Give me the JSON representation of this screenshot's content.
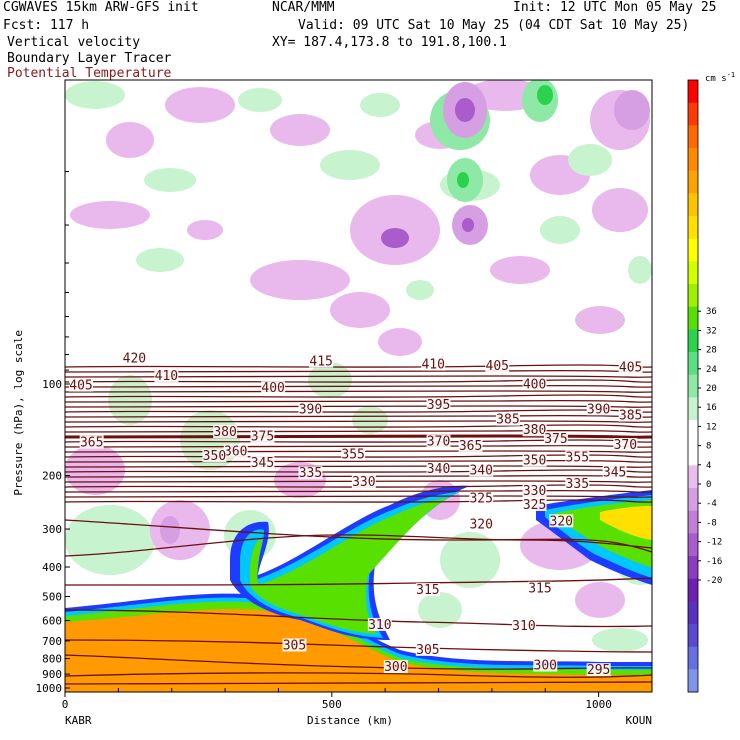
{
  "header": {
    "model": "CGWAVES 15km ARW-GFS init",
    "org": "NCAR/MMM",
    "init": "Init: 12 UTC Mon 05 May 25",
    "fcst": "Fcst:  117 h",
    "valid": "Valid: 09 UTC Sat 10 May 25 (04 CDT Sat 10 May 25)",
    "field1": "Vertical velocity",
    "field2": "Boundary Layer Tracer",
    "field3": "Potential Temperature",
    "xy": "XY= 187.4,173.8 to 191.8,100.1"
  },
  "colors": {
    "theta": "#6b0f0f",
    "green": "#a6f0a6",
    "pink": "#e9b8ec",
    "tracer_orange": "#ff9a00",
    "tracer_blue": "#1e3cff"
  },
  "chart_data": {
    "type": "contour",
    "xlabel": "Distance (km)",
    "ylabel": "Pressure (hPa), log scale",
    "xlim": [
      0,
      1100
    ],
    "ylim": [
      1000,
      10
    ],
    "y_scale": "log",
    "x_ticks": [
      "0",
      "500",
      "1000"
    ],
    "x_tick_values": [
      0,
      500,
      1000
    ],
    "y_ticks": [
      "100",
      "200",
      "300",
      "400",
      "500",
      "600",
      "700",
      "800",
      "900",
      "1000"
    ],
    "y_tick_values": [
      100,
      200,
      300,
      400,
      500,
      600,
      700,
      800,
      900,
      1000
    ],
    "endpoint_left": "KABR",
    "endpoint_right": "KOUN",
    "colorbar": {
      "unit": "cm s",
      "unit_exp": "-1",
      "labels": [
        "36",
        "32",
        "28",
        "24",
        "20",
        "16",
        "12",
        "8",
        "4",
        "0",
        "-4",
        "-8",
        "-12",
        "-16",
        "-20"
      ],
      "colors": [
        "#ff0000",
        "#ff3a00",
        "#ff6a00",
        "#ff8a00",
        "#ffa200",
        "#ffc400",
        "#ffe000",
        "#ffff00",
        "#d2ff00",
        "#9cf000",
        "#58e000",
        "#2bd24b",
        "#5ae083",
        "#8ee8a6",
        "#c7f3cf",
        "#ffffff",
        "#ffffff",
        "#ebbdee",
        "#d79fe3",
        "#c37ed8",
        "#aa5ccc",
        "#8e3cbf",
        "#6e20b0",
        "#5a30c0",
        "#5a4ad2",
        "#6670e0",
        "#8094ea"
      ]
    },
    "theta_labels": [
      {
        "x": 130,
        "p": 83,
        "value": "420"
      },
      {
        "x": 480,
        "p": 85,
        "value": "415"
      },
      {
        "x": 690,
        "p": 87,
        "value": "410"
      },
      {
        "x": 810,
        "p": 88,
        "value": "405"
      },
      {
        "x": 1060,
        "p": 89,
        "value": "405"
      },
      {
        "x": 190,
        "p": 95,
        "value": "410"
      },
      {
        "x": 30,
        "p": 102,
        "value": "405"
      },
      {
        "x": 390,
        "p": 104,
        "value": "400"
      },
      {
        "x": 880,
        "p": 101,
        "value": "400"
      },
      {
        "x": 700,
        "p": 118,
        "value": "395"
      },
      {
        "x": 460,
        "p": 122,
        "value": "390"
      },
      {
        "x": 1000,
        "p": 122,
        "value": "390"
      },
      {
        "x": 830,
        "p": 132,
        "value": "385"
      },
      {
        "x": 1060,
        "p": 128,
        "value": "385"
      },
      {
        "x": 300,
        "p": 145,
        "value": "380"
      },
      {
        "x": 880,
        "p": 143,
        "value": "380"
      },
      {
        "x": 370,
        "p": 150,
        "value": "375"
      },
      {
        "x": 920,
        "p": 153,
        "value": "375"
      },
      {
        "x": 50,
        "p": 157,
        "value": "365"
      },
      {
        "x": 760,
        "p": 161,
        "value": "365"
      },
      {
        "x": 700,
        "p": 156,
        "value": "370"
      },
      {
        "x": 1050,
        "p": 160,
        "value": "370"
      },
      {
        "x": 320,
        "p": 168,
        "value": "360"
      },
      {
        "x": 540,
        "p": 172,
        "value": "355"
      },
      {
        "x": 880,
        "p": 180,
        "value": "350"
      },
      {
        "x": 960,
        "p": 176,
        "value": "355"
      },
      {
        "x": 280,
        "p": 174,
        "value": "350"
      },
      {
        "x": 370,
        "p": 183,
        "value": "345"
      },
      {
        "x": 1030,
        "p": 197,
        "value": "345"
      },
      {
        "x": 700,
        "p": 192,
        "value": "340"
      },
      {
        "x": 780,
        "p": 194,
        "value": "340"
      },
      {
        "x": 460,
        "p": 198,
        "value": "335"
      },
      {
        "x": 960,
        "p": 215,
        "value": "335"
      },
      {
        "x": 560,
        "p": 212,
        "value": "330"
      },
      {
        "x": 880,
        "p": 227,
        "value": "330"
      },
      {
        "x": 780,
        "p": 240,
        "value": "325"
      },
      {
        "x": 880,
        "p": 252,
        "value": "325"
      },
      {
        "x": 780,
        "p": 292,
        "value": "320"
      },
      {
        "x": 930,
        "p": 285,
        "value": "320"
      },
      {
        "x": 680,
        "p": 480,
        "value": "315"
      },
      {
        "x": 890,
        "p": 475,
        "value": "315"
      },
      {
        "x": 590,
        "p": 625,
        "value": "310"
      },
      {
        "x": 860,
        "p": 630,
        "value": "310"
      },
      {
        "x": 430,
        "p": 730,
        "value": "305"
      },
      {
        "x": 680,
        "p": 755,
        "value": "305"
      },
      {
        "x": 620,
        "p": 860,
        "value": "300"
      },
      {
        "x": 900,
        "p": 850,
        "value": "300"
      },
      {
        "x": 1000,
        "p": 880,
        "value": "295"
      }
    ]
  }
}
